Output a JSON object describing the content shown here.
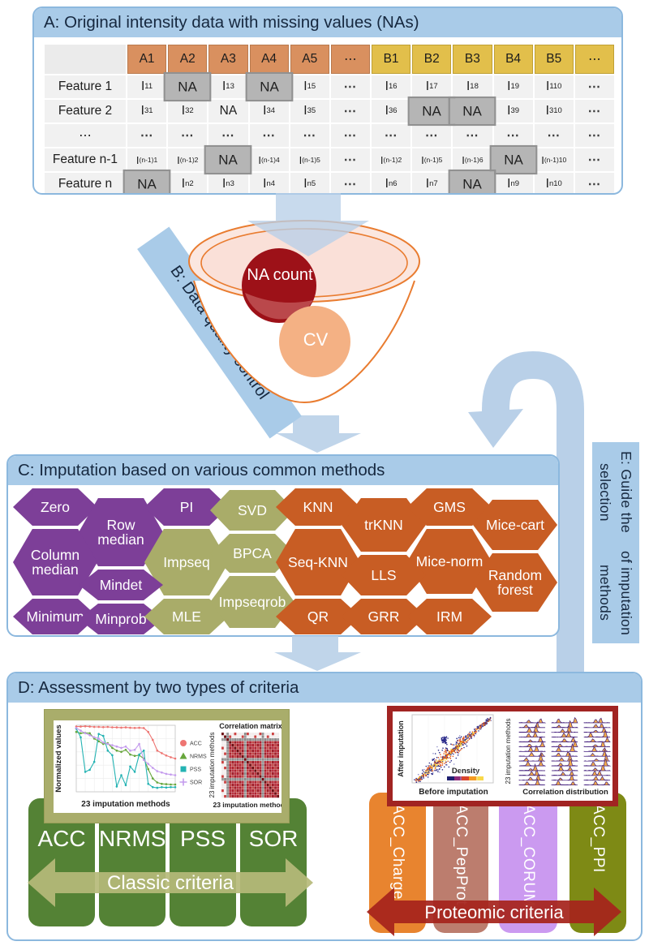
{
  "panels": {
    "a": {
      "title": "A: Original intensity data with missing values (NAs)"
    },
    "b": {
      "banner": "B: Data quality control",
      "na_bubble": "NA count",
      "cv_bubble": "CV"
    },
    "c": {
      "title": "C: Imputation based on various common methods"
    },
    "d": {
      "title": "D: Assessment by two types of criteria"
    },
    "e": {
      "line1": "E: Guide the selection",
      "line2": "of imputation methods"
    }
  },
  "table": {
    "columns": [
      {
        "label": "A1",
        "g": "A"
      },
      {
        "label": "A2",
        "g": "A"
      },
      {
        "label": "A3",
        "g": "A"
      },
      {
        "label": "A4",
        "g": "A"
      },
      {
        "label": "A5",
        "g": "A"
      },
      {
        "label": "⋯",
        "g": "A"
      },
      {
        "label": "B1",
        "g": "B"
      },
      {
        "label": "B2",
        "g": "B"
      },
      {
        "label": "B3",
        "g": "B"
      },
      {
        "label": "B4",
        "g": "B"
      },
      {
        "label": "B5",
        "g": "B"
      },
      {
        "label": "⋯",
        "g": "B"
      }
    ],
    "rows": [
      {
        "label": "Feature 1",
        "cells": [
          {
            "s": "11"
          },
          {
            "na": true
          },
          {
            "s": "13"
          },
          {
            "na": true
          },
          {
            "s": "15"
          },
          {
            "d": true
          },
          {
            "s": "16"
          },
          {
            "s": "17"
          },
          {
            "s": "18"
          },
          {
            "s": "19"
          },
          {
            "s": "110"
          },
          {
            "d": true
          }
        ]
      },
      {
        "label": "Feature 2",
        "cells": [
          {
            "s": "31"
          },
          {
            "s": "32"
          },
          {
            "t": "NA"
          },
          {
            "s": "34"
          },
          {
            "s": "35"
          },
          {
            "d": true
          },
          {
            "s": "36"
          },
          {
            "na": true
          },
          {
            "na": true
          },
          {
            "s": "39"
          },
          {
            "s": "310"
          },
          {
            "d": true
          }
        ]
      },
      {
        "label": "⋯",
        "cells": [
          {
            "d": true
          },
          {
            "d": true
          },
          {
            "d": true
          },
          {
            "d": true
          },
          {
            "d": true
          },
          {
            "d": true
          },
          {
            "d": true
          },
          {
            "d": true
          },
          {
            "d": true
          },
          {
            "d": true
          },
          {
            "d": true
          },
          {
            "d": true
          }
        ]
      },
      {
        "label": "Feature n-1",
        "cells": [
          {
            "s": "(n-1)1"
          },
          {
            "s": "(n-1)2"
          },
          {
            "na": true
          },
          {
            "s": "(n-1)4"
          },
          {
            "s": "(n-1)5"
          },
          {
            "d": true
          },
          {
            "s": "(n-1)2"
          },
          {
            "s": "(n-1)5"
          },
          {
            "s": "(n-1)6"
          },
          {
            "na": true
          },
          {
            "s": "(n-1)10"
          },
          {
            "d": true
          }
        ]
      },
      {
        "label": "Feature n",
        "cells": [
          {
            "na": true
          },
          {
            "s": "n2"
          },
          {
            "s": "n3"
          },
          {
            "s": "n4"
          },
          {
            "s": "n5"
          },
          {
            "d": true
          },
          {
            "s": "n6"
          },
          {
            "s": "n7"
          },
          {
            "na": true
          },
          {
            "s": "n9"
          },
          {
            "s": "n10"
          },
          {
            "d": true
          }
        ]
      }
    ]
  },
  "methods": [
    {
      "label": "Zero",
      "group": "purple"
    },
    {
      "label": "Row median",
      "group": "purple"
    },
    {
      "label": "PI",
      "group": "purple"
    },
    {
      "label": "SVD",
      "group": "olive"
    },
    {
      "label": "KNN",
      "group": "orange"
    },
    {
      "label": "trKNN",
      "group": "orange"
    },
    {
      "label": "GMS",
      "group": "orange"
    },
    {
      "label": "Mice-cart",
      "group": "orange"
    },
    {
      "label": "Column median",
      "group": "purple"
    },
    {
      "label": "Impseq",
      "group": "olive"
    },
    {
      "label": "BPCA",
      "group": "olive"
    },
    {
      "label": "Seq-KNN",
      "group": "orange"
    },
    {
      "label": "Mice-norm",
      "group": "orange"
    },
    {
      "label": "Mindet",
      "group": "purple"
    },
    {
      "label": "LLS",
      "group": "orange"
    },
    {
      "label": "Minimum",
      "group": "purple"
    },
    {
      "label": "Minprob",
      "group": "purple"
    },
    {
      "label": "MLE",
      "group": "olive"
    },
    {
      "label": "Impseqrob",
      "group": "olive"
    },
    {
      "label": "QR",
      "group": "orange"
    },
    {
      "label": "GRR",
      "group": "orange"
    },
    {
      "label": "IRM",
      "group": "orange"
    },
    {
      "label": "Random forest",
      "group": "orange"
    }
  ],
  "palette": {
    "purple": "#7d3f98",
    "olive": "#a9ac69",
    "orange": "#c85d24",
    "title_bar": "#a9cbe8",
    "arrow_blue": "#b9d0e8",
    "funnel_orange": "#e97c30",
    "na_circle": "#9d1118",
    "cv_circle": "#f4b184",
    "green_pillar": "#548235",
    "classic_arrow": "#b6ba79",
    "proteomic_arrow": "#a6231c",
    "red_box_border": "#a12422"
  },
  "classic": {
    "items": [
      "ACC",
      "NRMSE",
      "PSS",
      "SOR"
    ],
    "arrow_label": "Classic criteria"
  },
  "proteomic": {
    "items": [
      {
        "label": "ACC_Charge",
        "color": "#e8842f"
      },
      {
        "label": "ACC_PepProt",
        "color": "#bc7d6e"
      },
      {
        "label": "ACC_CORUM",
        "color": "#cb9af0"
      },
      {
        "label": "ACC_PPI",
        "color": "#7e8a15"
      }
    ],
    "arrow_label": "Proteomic criteria"
  },
  "chart_data": [
    {
      "type": "line",
      "xlabel": "23 imputation methods",
      "ylabel": "Normalized values",
      "ylim": [
        0,
        1
      ],
      "x_count": 23,
      "legend_position": "right",
      "series": [
        {
          "name": "ACC",
          "color": "#ee7572",
          "marker": "circle",
          "values": [
            0.98,
            0.98,
            0.985,
            0.98,
            0.975,
            0.975,
            0.972,
            0.975,
            0.97,
            0.968,
            0.965,
            0.968,
            0.962,
            0.96,
            0.962,
            0.958,
            0.9,
            0.78,
            0.62,
            0.58,
            0.545,
            0.52,
            0.5
          ]
        },
        {
          "name": "NRMS",
          "color": "#67a63c",
          "marker": "triangle",
          "values": [
            0.9,
            0.88,
            0.885,
            0.88,
            0.8,
            0.76,
            0.72,
            0.73,
            0.66,
            0.62,
            0.6,
            0.63,
            0.56,
            0.54,
            0.55,
            0.5,
            0.34,
            0.2,
            0.14,
            0.12,
            0.115,
            0.11,
            0.11
          ]
        },
        {
          "name": "PSS",
          "color": "#24b3b3",
          "marker": "square",
          "values": [
            0.95,
            0.82,
            0.3,
            0.33,
            0.45,
            0.87,
            0.84,
            0.62,
            0.55,
            0.08,
            0.25,
            0.1,
            0.38,
            0.3,
            0.56,
            0.62,
            0.12,
            0.07,
            0.06,
            0.07,
            0.065,
            0.07,
            0.07
          ]
        },
        {
          "name": "SOR",
          "color": "#c49bed",
          "marker": "plus",
          "values": [
            0.96,
            0.92,
            0.88,
            0.85,
            0.82,
            0.8,
            0.74,
            0.72,
            0.7,
            0.68,
            0.66,
            0.68,
            0.62,
            0.63,
            0.72,
            0.48,
            0.42,
            0.36,
            0.31,
            0.29,
            0.27,
            0.26,
            0.25
          ]
        }
      ]
    },
    {
      "type": "heatmap",
      "title": "Correlation matrix",
      "xlabel": "23 imputation methods",
      "ylabel": "23 imputation methods",
      "n": 23
    },
    {
      "type": "scatter",
      "xlabel": "Before imputation",
      "ylabel": "After imputation",
      "legend": "Density"
    },
    {
      "type": "ridgeline",
      "xlabel": "Correlation distribution",
      "ylabel": "23 imputation methods",
      "groups": 3
    }
  ]
}
